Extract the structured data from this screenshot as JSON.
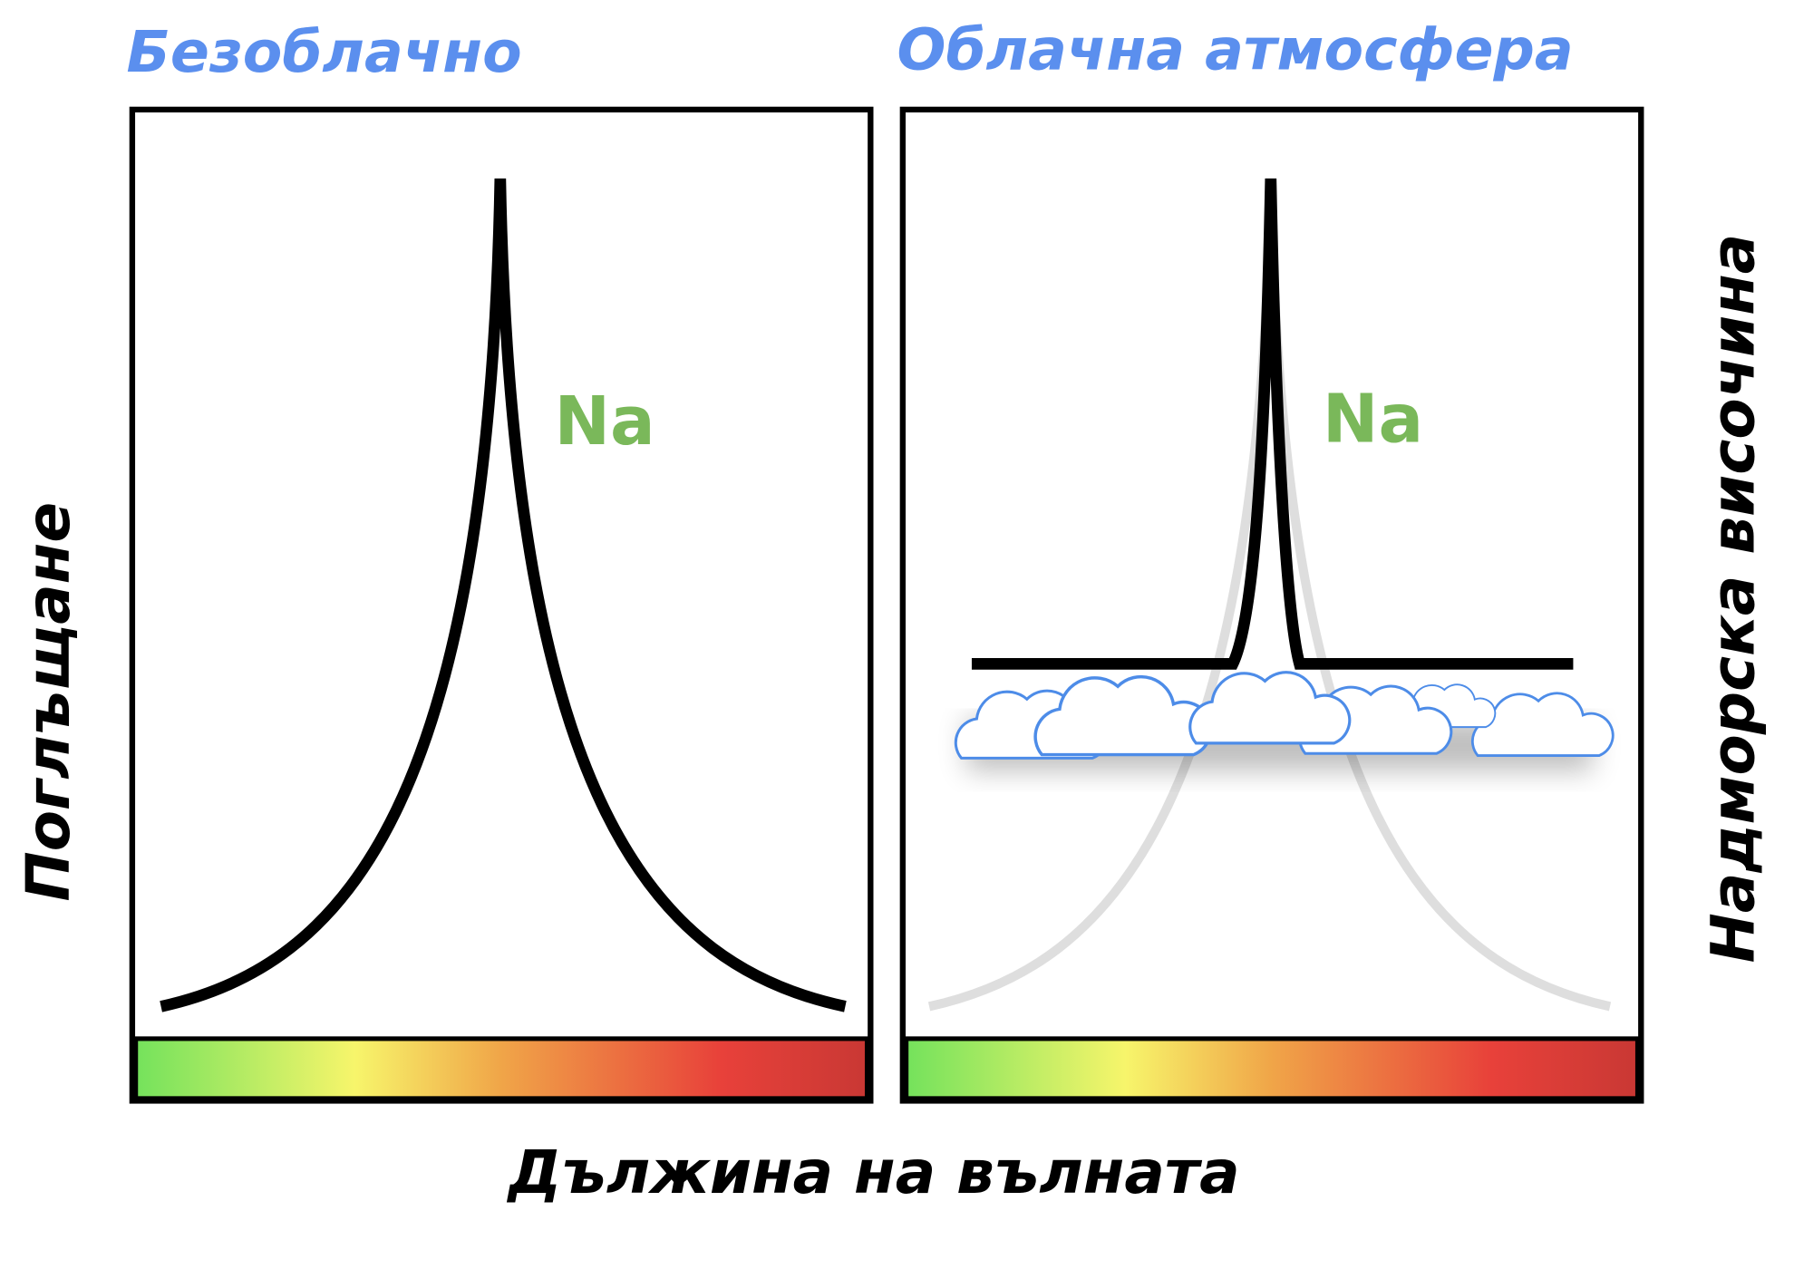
{
  "panels": [
    {
      "title": "Безоблачно",
      "label": "Na"
    },
    {
      "title": "Облачна атмосфера",
      "label": "Na"
    }
  ],
  "y_axis_label": "Поглъщане",
  "right_axis_label": "Надморска височина",
  "x_axis_label": "Дължина на вълната"
}
